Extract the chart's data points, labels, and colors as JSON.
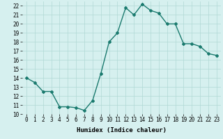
{
  "xlabel": "Humidex (Indice chaleur)",
  "x": [
    0,
    1,
    2,
    3,
    4,
    5,
    6,
    7,
    8,
    9,
    10,
    11,
    12,
    13,
    14,
    15,
    16,
    17,
    18,
    19,
    20,
    21,
    22,
    23
  ],
  "y": [
    14,
    13.5,
    12.5,
    12.5,
    10.8,
    10.8,
    10.7,
    10.4,
    11.5,
    14.5,
    18,
    19,
    21.8,
    21,
    22.2,
    21.5,
    21.2,
    20,
    20,
    17.8,
    17.8,
    17.5,
    16.7,
    16.5
  ],
  "line_color": "#1a7a6e",
  "marker": "D",
  "marker_size": 2,
  "background_color": "#d6f0ef",
  "grid_color": "#b0d8d5",
  "ylim": [
    10,
    22.5
  ],
  "yticks": [
    10,
    11,
    12,
    13,
    14,
    15,
    16,
    17,
    18,
    19,
    20,
    21,
    22
  ],
  "xticks": [
    0,
    1,
    2,
    3,
    4,
    5,
    6,
    7,
    8,
    9,
    10,
    11,
    12,
    13,
    14,
    15,
    16,
    17,
    18,
    19,
    20,
    21,
    22,
    23
  ],
  "tick_fontsize": 5.5,
  "xlabel_fontsize": 6.5,
  "line_width": 1.0
}
